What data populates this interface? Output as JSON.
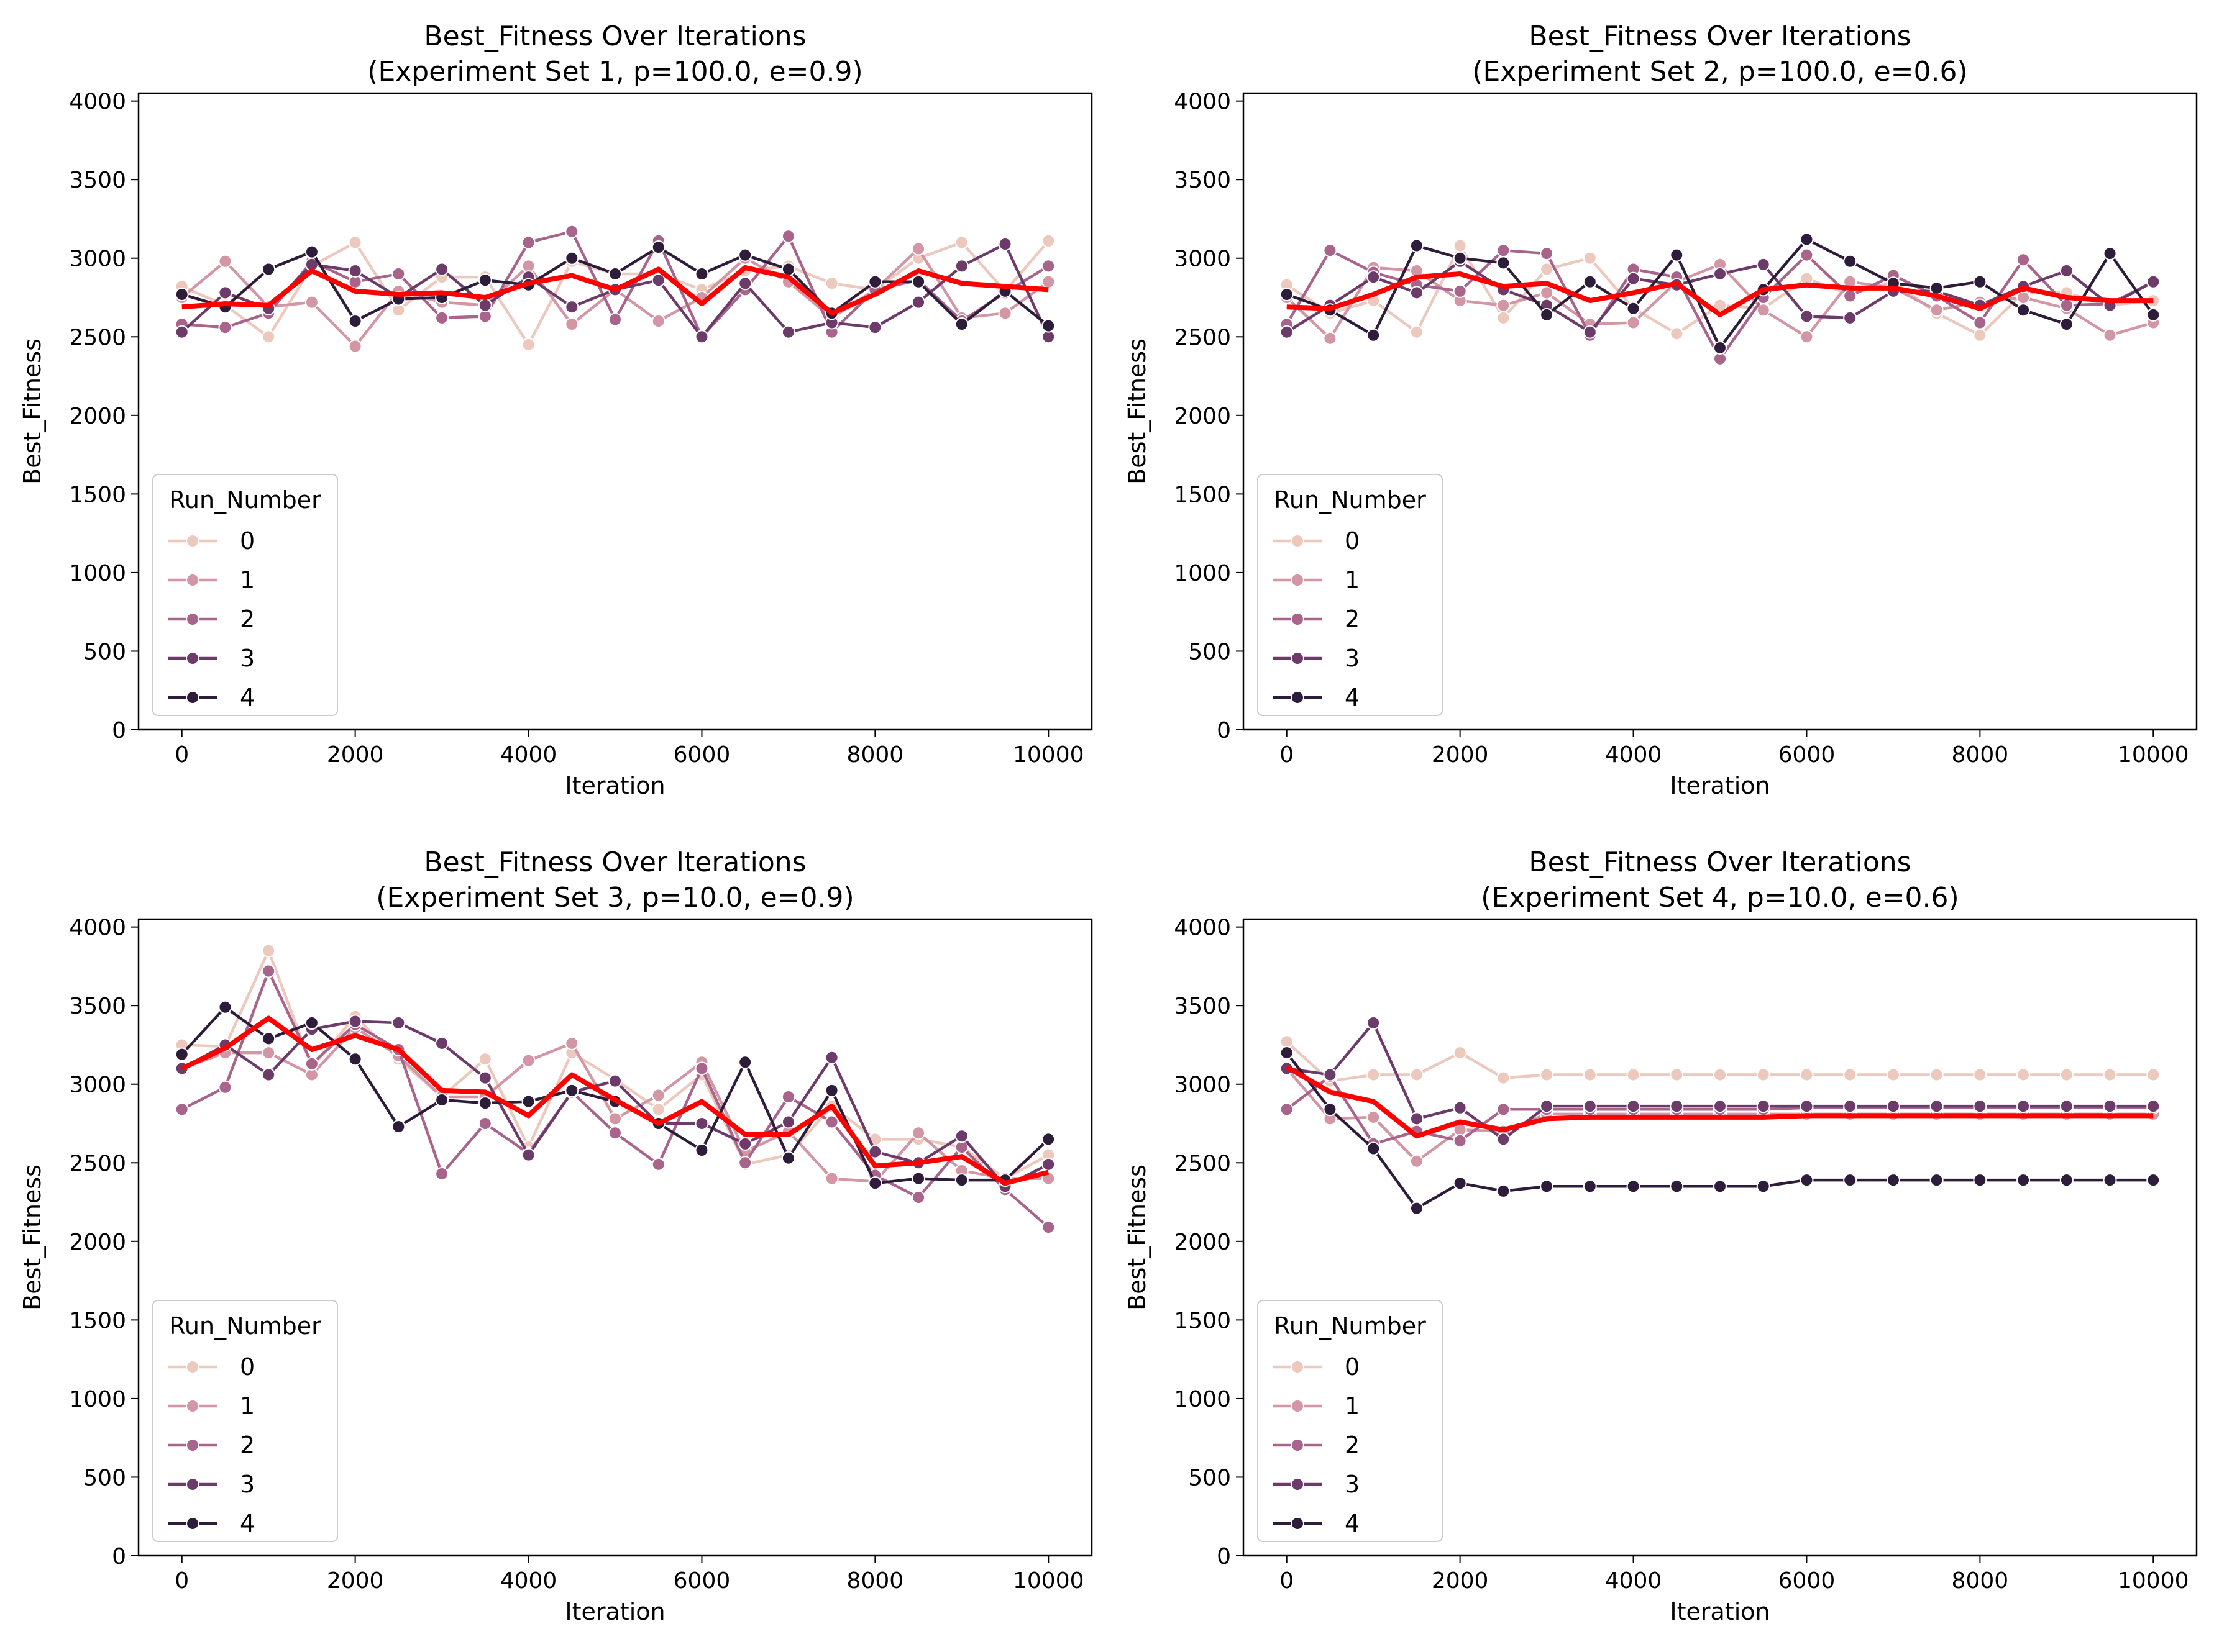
{
  "chart_data": [
    {
      "type": "line",
      "title": [
        "Best_Fitness Over Iterations",
        "(Experiment Set 1, p=100.0, e=0.9)"
      ],
      "xlabel": "Iteration",
      "ylabel": "Best_Fitness",
      "xlim": [
        -500,
        10500
      ],
      "ylim": [
        0,
        4050
      ],
      "xticks": [
        0,
        2000,
        4000,
        6000,
        8000,
        10000
      ],
      "yticks": [
        0,
        500,
        1000,
        1500,
        2000,
        2500,
        3000,
        3500,
        4000
      ],
      "x": [
        0,
        500,
        1000,
        1500,
        2000,
        2500,
        3000,
        3500,
        4000,
        4500,
        5000,
        5500,
        6000,
        6500,
        7000,
        7500,
        8000,
        8500,
        9000,
        9500,
        10000
      ],
      "legend": {
        "title": "Run_Number",
        "position": "lower-left"
      },
      "series": [
        {
          "name": "0",
          "color": "#ecc8bd",
          "values": [
            2820,
            2700,
            2500,
            2950,
            3100,
            2670,
            2880,
            2880,
            2450,
            2980,
            2900,
            2900,
            2800,
            2920,
            2950,
            2840,
            2800,
            3000,
            3100,
            2790,
            3110
          ]
        },
        {
          "name": "1",
          "color": "#d296a4",
          "values": [
            2750,
            2980,
            2690,
            2720,
            2440,
            2790,
            2720,
            2700,
            2950,
            2580,
            2800,
            2600,
            2750,
            3000,
            2850,
            2620,
            2800,
            3060,
            2620,
            2650,
            2850
          ]
        },
        {
          "name": "2",
          "color": "#a9648b",
          "values": [
            2580,
            2560,
            2650,
            2980,
            2850,
            2900,
            2620,
            2630,
            3100,
            3170,
            2610,
            3110,
            2500,
            2800,
            3140,
            2530,
            2800,
            2860,
            2600,
            2780,
            2950
          ]
        },
        {
          "name": "3",
          "color": "#6c3b6a",
          "values": [
            2530,
            2780,
            2680,
            2960,
            2920,
            2750,
            2930,
            2700,
            2880,
            2690,
            2800,
            2860,
            2500,
            2840,
            2530,
            2590,
            2560,
            2720,
            2950,
            3090,
            2500
          ]
        },
        {
          "name": "4",
          "color": "#2e1d3a",
          "values": [
            2770,
            2690,
            2930,
            3040,
            2600,
            2740,
            2750,
            2860,
            2830,
            3000,
            2900,
            3070,
            2900,
            3020,
            2930,
            2650,
            2850,
            2850,
            2580,
            2790,
            2570
          ]
        }
      ],
      "mean": {
        "color": "#ff0000",
        "values": [
          2690,
          2710,
          2700,
          2920,
          2790,
          2770,
          2780,
          2750,
          2840,
          2890,
          2800,
          2930,
          2710,
          2940,
          2880,
          2650,
          2770,
          2920,
          2840,
          2820,
          2800
        ]
      }
    },
    {
      "type": "line",
      "title": [
        "Best_Fitness Over Iterations",
        "(Experiment Set 2, p=100.0, e=0.6)"
      ],
      "xlabel": "Iteration",
      "ylabel": "Best_Fitness",
      "xlim": [
        -500,
        10500
      ],
      "ylim": [
        0,
        4050
      ],
      "xticks": [
        0,
        2000,
        4000,
        6000,
        8000,
        10000
      ],
      "yticks": [
        0,
        500,
        1000,
        1500,
        2000,
        2500,
        3000,
        3500,
        4000
      ],
      "x": [
        0,
        500,
        1000,
        1500,
        2000,
        2500,
        3000,
        3500,
        4000,
        4500,
        5000,
        5500,
        6000,
        6500,
        7000,
        7500,
        8000,
        8500,
        9000,
        9500,
        10000
      ],
      "legend": {
        "title": "Run_Number",
        "position": "lower-left"
      },
      "series": [
        {
          "name": "0",
          "color": "#ecc8bd",
          "values": [
            2830,
            2650,
            2730,
            2530,
            3080,
            2620,
            2930,
            3000,
            2680,
            2520,
            2700,
            2680,
            2870,
            2770,
            2850,
            2650,
            2510,
            2780,
            2780,
            2700,
            2730
          ]
        },
        {
          "name": "1",
          "color": "#d296a4",
          "values": [
            2750,
            2490,
            2940,
            2920,
            2730,
            2700,
            2780,
            2580,
            2590,
            2850,
            2960,
            2670,
            2500,
            2850,
            2810,
            2670,
            2720,
            2750,
            2680,
            2510,
            2590
          ]
        },
        {
          "name": "2",
          "color": "#a9648b",
          "values": [
            2580,
            3050,
            2910,
            2830,
            2790,
            3050,
            3030,
            2510,
            2930,
            2880,
            2360,
            2750,
            3020,
            2760,
            2890,
            2760,
            2590,
            2990,
            2700,
            2710,
            2850
          ]
        },
        {
          "name": "3",
          "color": "#6c3b6a",
          "values": [
            2530,
            2700,
            2880,
            2780,
            2980,
            2800,
            2700,
            2530,
            2870,
            2830,
            2900,
            2960,
            2630,
            2620,
            2790,
            2790,
            2700,
            2820,
            2920,
            2700,
            2850
          ]
        },
        {
          "name": "4",
          "color": "#2e1d3a",
          "values": [
            2770,
            2670,
            2510,
            3080,
            3000,
            2970,
            2640,
            2850,
            2680,
            3020,
            2430,
            2800,
            3120,
            2980,
            2840,
            2810,
            2850,
            2670,
            2580,
            3030,
            2640
          ]
        }
      ],
      "mean": {
        "color": "#ff0000",
        "values": [
          2690,
          2680,
          2770,
          2880,
          2900,
          2820,
          2840,
          2730,
          2780,
          2840,
          2640,
          2800,
          2830,
          2810,
          2810,
          2760,
          2680,
          2810,
          2750,
          2730,
          2730
        ]
      }
    },
    {
      "type": "line",
      "title": [
        "Best_Fitness Over Iterations",
        "(Experiment Set 3, p=10.0, e=0.9)"
      ],
      "xlabel": "Iteration",
      "ylabel": "Best_Fitness",
      "xlim": [
        -500,
        10500
      ],
      "ylim": [
        0,
        4050
      ],
      "xticks": [
        0,
        2000,
        4000,
        6000,
        8000,
        10000
      ],
      "yticks": [
        0,
        500,
        1000,
        1500,
        2000,
        2500,
        3000,
        3500,
        4000
      ],
      "x": [
        0,
        500,
        1000,
        1500,
        2000,
        2500,
        3000,
        3500,
        4000,
        4500,
        5000,
        5500,
        6000,
        6500,
        7000,
        7500,
        8000,
        8500,
        9000,
        9500,
        10000
      ],
      "legend": {
        "title": "Run_Number",
        "position": "lower-left"
      },
      "series": [
        {
          "name": "0",
          "color": "#ecc8bd",
          "values": [
            3250,
            3240,
            3850,
            3110,
            3430,
            3160,
            2920,
            3160,
            2600,
            3200,
            3030,
            2840,
            3060,
            2490,
            2550,
            2860,
            2650,
            2650,
            2600,
            2400,
            2550
          ]
        },
        {
          "name": "1",
          "color": "#d296a4",
          "values": [
            3100,
            3200,
            3200,
            3060,
            3360,
            3180,
            2920,
            2920,
            3150,
            3260,
            2780,
            2930,
            3140,
            2570,
            2700,
            2400,
            2380,
            2690,
            2450,
            2400,
            2400
          ]
        },
        {
          "name": "2",
          "color": "#a9648b",
          "values": [
            2840,
            2980,
            3720,
            3130,
            3380,
            3220,
            2430,
            2750,
            2560,
            2950,
            2690,
            2490,
            3100,
            2500,
            2920,
            2760,
            2420,
            2280,
            2600,
            2330,
            2090
          ]
        },
        {
          "name": "3",
          "color": "#6c3b6a",
          "values": [
            3100,
            3250,
            3060,
            3350,
            3400,
            3390,
            3260,
            3040,
            2550,
            2950,
            3020,
            2750,
            2750,
            2620,
            2760,
            3170,
            2570,
            2500,
            2670,
            2350,
            2490
          ]
        },
        {
          "name": "4",
          "color": "#2e1d3a",
          "values": [
            3190,
            3490,
            3290,
            3390,
            3160,
            2730,
            2900,
            2880,
            2890,
            2960,
            2890,
            2750,
            2580,
            3140,
            2530,
            2960,
            2370,
            2400,
            2390,
            2390,
            2650
          ]
        }
      ],
      "mean": {
        "color": "#ff0000",
        "values": [
          3100,
          3230,
          3420,
          3220,
          3310,
          3220,
          2960,
          2950,
          2800,
          3060,
          2900,
          2750,
          2890,
          2680,
          2680,
          2860,
          2480,
          2500,
          2540,
          2370,
          2440
        ]
      }
    },
    {
      "type": "line",
      "title": [
        "Best_Fitness Over Iterations",
        "(Experiment Set 4, p=10.0, e=0.6)"
      ],
      "xlabel": "Iteration",
      "ylabel": "Best_Fitness",
      "xlim": [
        -500,
        10500
      ],
      "ylim": [
        0,
        4050
      ],
      "xticks": [
        0,
        2000,
        4000,
        6000,
        8000,
        10000
      ],
      "yticks": [
        0,
        500,
        1000,
        1500,
        2000,
        2500,
        3000,
        3500,
        4000
      ],
      "x": [
        0,
        500,
        1000,
        1500,
        2000,
        2500,
        3000,
        3500,
        4000,
        4500,
        5000,
        5500,
        6000,
        6500,
        7000,
        7500,
        8000,
        8500,
        9000,
        9500,
        10000
      ],
      "legend": {
        "title": "Run_Number",
        "position": "lower-left"
      },
      "series": [
        {
          "name": "0",
          "color": "#ecc8bd",
          "values": [
            3270,
            3020,
            3060,
            3060,
            3200,
            3040,
            3060,
            3060,
            3060,
            3060,
            3060,
            3060,
            3060,
            3060,
            3060,
            3060,
            3060,
            3060,
            3060,
            3060,
            3060
          ]
        },
        {
          "name": "1",
          "color": "#d296a4",
          "values": [
            3100,
            2780,
            2790,
            2510,
            2710,
            2700,
            2810,
            2810,
            2810,
            2810,
            2810,
            2810,
            2810,
            2810,
            2810,
            2810,
            2810,
            2810,
            2810,
            2810,
            2810
          ]
        },
        {
          "name": "2",
          "color": "#a9648b",
          "values": [
            2840,
            3050,
            2620,
            2700,
            2640,
            2840,
            2840,
            2840,
            2840,
            2840,
            2840,
            2840,
            2850,
            2850,
            2850,
            2850,
            2850,
            2850,
            2850,
            2850,
            2850
          ]
        },
        {
          "name": "3",
          "color": "#6c3b6a",
          "values": [
            3100,
            3060,
            3390,
            2780,
            2850,
            2650,
            2860,
            2860,
            2860,
            2860,
            2860,
            2860,
            2860,
            2860,
            2860,
            2860,
            2860,
            2860,
            2860,
            2860,
            2860
          ]
        },
        {
          "name": "4",
          "color": "#2e1d3a",
          "values": [
            3200,
            2840,
            2590,
            2210,
            2370,
            2320,
            2350,
            2350,
            2350,
            2350,
            2350,
            2350,
            2390,
            2390,
            2390,
            2390,
            2390,
            2390,
            2390,
            2390,
            2390
          ]
        }
      ],
      "mean": {
        "color": "#ff0000",
        "values": [
          3110,
          2950,
          2890,
          2670,
          2760,
          2710,
          2780,
          2790,
          2790,
          2790,
          2790,
          2790,
          2800,
          2800,
          2800,
          2800,
          2800,
          2800,
          2800,
          2800,
          2800
        ]
      }
    }
  ]
}
